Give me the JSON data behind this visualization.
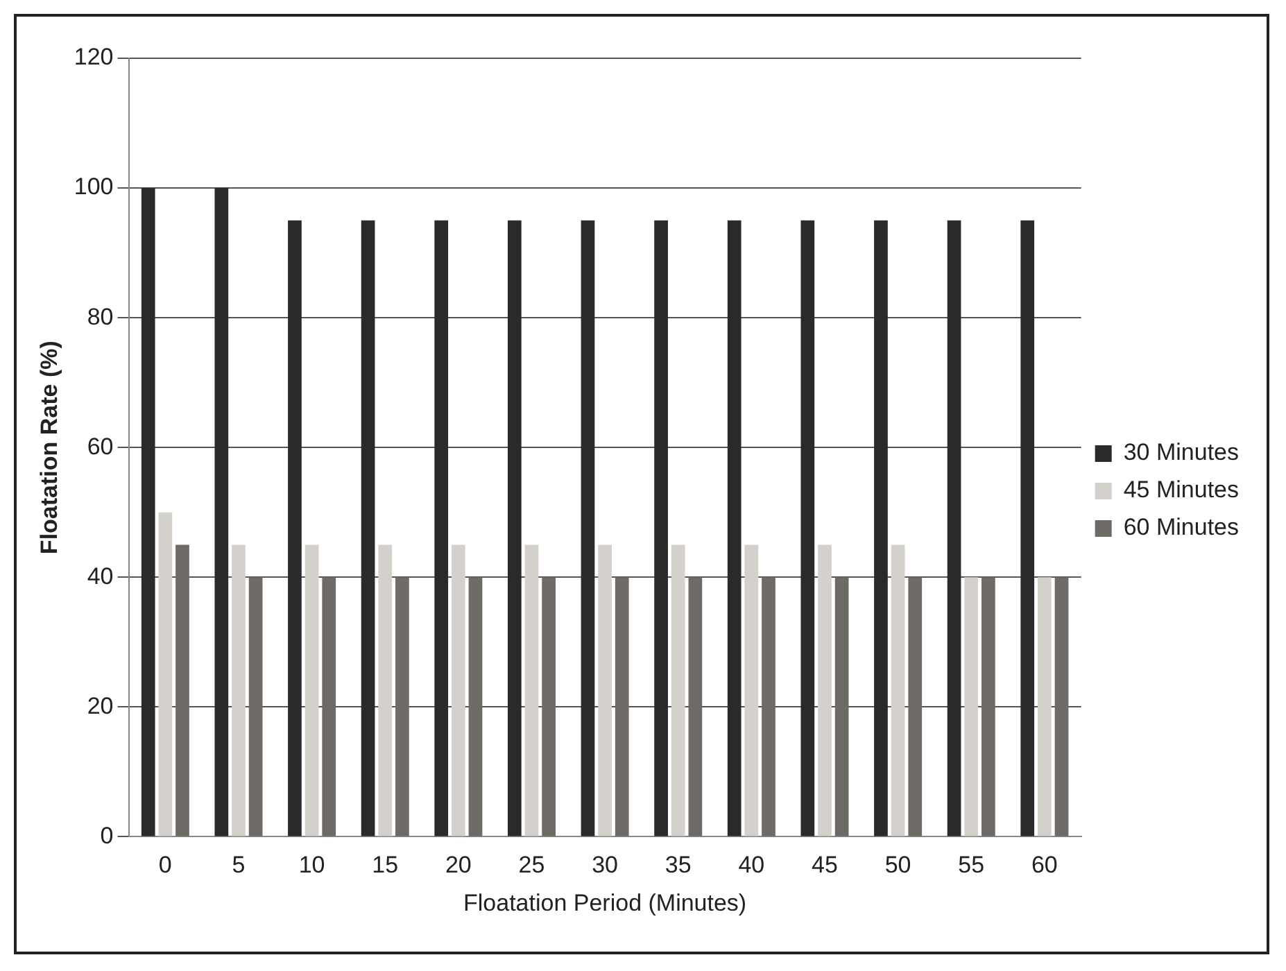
{
  "chart_data": {
    "type": "bar",
    "xlabel": "Floatation Period (Minutes)",
    "ylabel": "Floatation Rate (%)",
    "categories": [
      "0",
      "5",
      "10",
      "15",
      "20",
      "25",
      "30",
      "35",
      "40",
      "45",
      "50",
      "55",
      "60"
    ],
    "series": [
      {
        "name": "30 Minutes",
        "color": "#2a2a2a",
        "values": [
          100,
          100,
          95,
          95,
          95,
          95,
          95,
          95,
          95,
          95,
          95,
          95,
          95
        ]
      },
      {
        "name": "45 Minutes",
        "color": "#d4d0cc",
        "values": [
          50,
          45,
          45,
          45,
          45,
          45,
          45,
          45,
          45,
          45,
          45,
          40,
          40
        ]
      },
      {
        "name": "60 Minutes",
        "color": "#6e6a66",
        "values": [
          45,
          40,
          40,
          40,
          40,
          40,
          40,
          40,
          40,
          40,
          40,
          40,
          40
        ]
      }
    ],
    "ylim": [
      0,
      120
    ],
    "yticks": [
      0,
      20,
      40,
      60,
      80,
      100,
      120
    ],
    "grid": "y",
    "legend": "right"
  }
}
